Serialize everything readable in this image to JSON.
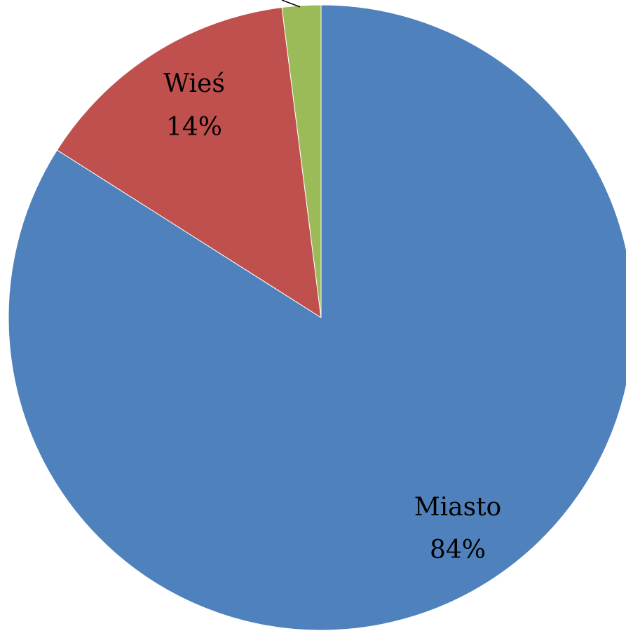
{
  "chart_data": {
    "type": "pie",
    "start_angle_deg": 0,
    "direction": "clockwise",
    "slices": [
      {
        "label": "Miasto",
        "value": 84,
        "value_label": "84%",
        "color": "#4F81BD"
      },
      {
        "label": "Wieś",
        "value": 14,
        "value_label": "14%",
        "color": "#C0504D"
      },
      {
        "label": "",
        "value": 2,
        "value_label": "",
        "color": "#9BBB59"
      }
    ]
  }
}
